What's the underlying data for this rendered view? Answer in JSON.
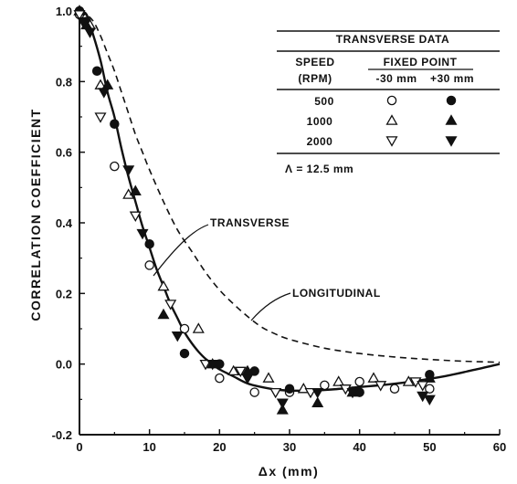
{
  "chart_data": {
    "type": "scatter",
    "title": "",
    "xlabel": "Δx (mm)",
    "ylabel": "CORRELATION COEFFICIENT",
    "xlim": [
      0,
      60
    ],
    "ylim": [
      -0.2,
      1.0
    ],
    "x_ticks": [
      "0",
      "10",
      "20",
      "30",
      "40",
      "50",
      "60"
    ],
    "y_ticks": [
      "1.0",
      "0.8",
      "0.6",
      "0.4",
      "0.2",
      "0.0",
      "-0.2"
    ],
    "grid": false,
    "curves": [
      {
        "name": "TRANSVERSE",
        "style": "solid",
        "points": [
          [
            0,
            1.0
          ],
          [
            1,
            0.99
          ],
          [
            2,
            0.93
          ],
          [
            3,
            0.86
          ],
          [
            4,
            0.77
          ],
          [
            5,
            0.7
          ],
          [
            6,
            0.61
          ],
          [
            7,
            0.53
          ],
          [
            8,
            0.46
          ],
          [
            9,
            0.39
          ],
          [
            10,
            0.33
          ],
          [
            11,
            0.27
          ],
          [
            12,
            0.22
          ],
          [
            13,
            0.17
          ],
          [
            14,
            0.13
          ],
          [
            15,
            0.09
          ],
          [
            16,
            0.06
          ],
          [
            17,
            0.035
          ],
          [
            18,
            0.015
          ],
          [
            19,
            0.0
          ],
          [
            20,
            -0.015
          ],
          [
            22,
            -0.035
          ],
          [
            24,
            -0.055
          ],
          [
            26,
            -0.065
          ],
          [
            28,
            -0.072
          ],
          [
            30,
            -0.075
          ],
          [
            33,
            -0.075
          ],
          [
            36,
            -0.072
          ],
          [
            40,
            -0.065
          ],
          [
            44,
            -0.058
          ],
          [
            48,
            -0.048
          ],
          [
            52,
            -0.035
          ],
          [
            56,
            -0.018
          ],
          [
            60,
            0.0
          ]
        ]
      },
      {
        "name": "LONGITUDINAL",
        "style": "dashed",
        "points": [
          [
            0,
            1.0
          ],
          [
            1,
            0.99
          ],
          [
            2,
            0.97
          ],
          [
            3,
            0.93
          ],
          [
            4,
            0.88
          ],
          [
            5,
            0.83
          ],
          [
            6,
            0.77
          ],
          [
            7,
            0.71
          ],
          [
            8,
            0.65
          ],
          [
            9,
            0.6
          ],
          [
            10,
            0.55
          ],
          [
            12,
            0.46
          ],
          [
            14,
            0.38
          ],
          [
            16,
            0.32
          ],
          [
            18,
            0.26
          ],
          [
            20,
            0.21
          ],
          [
            22,
            0.17
          ],
          [
            24,
            0.135
          ],
          [
            26,
            0.105
          ],
          [
            28,
            0.085
          ],
          [
            30,
            0.07
          ],
          [
            35,
            0.045
          ],
          [
            40,
            0.03
          ],
          [
            45,
            0.02
          ],
          [
            50,
            0.013
          ],
          [
            55,
            0.008
          ],
          [
            60,
            0.005
          ]
        ]
      }
    ],
    "series": [
      {
        "name": "500 -30 mm",
        "marker": "circle-open",
        "points": [
          [
            0,
            0.99
          ],
          [
            5,
            0.56
          ],
          [
            10,
            0.28
          ],
          [
            15,
            0.1
          ],
          [
            20,
            -0.04
          ],
          [
            25,
            -0.08
          ],
          [
            30,
            -0.08
          ],
          [
            35,
            -0.06
          ],
          [
            40,
            -0.05
          ],
          [
            45,
            -0.07
          ],
          [
            50,
            -0.07
          ]
        ]
      },
      {
        "name": "500 +30 mm",
        "marker": "circle-filled",
        "points": [
          [
            0,
            1.0
          ],
          [
            1,
            0.97
          ],
          [
            2.5,
            0.83
          ],
          [
            5,
            0.68
          ],
          [
            10,
            0.34
          ],
          [
            15,
            0.03
          ],
          [
            20,
            0.0
          ],
          [
            25,
            -0.02
          ],
          [
            30,
            -0.07
          ],
          [
            40,
            -0.08
          ],
          [
            50,
            -0.03
          ]
        ]
      },
      {
        "name": "1000 -30 mm",
        "marker": "triangle-up-open",
        "points": [
          [
            0,
            1.0
          ],
          [
            1.5,
            0.96
          ],
          [
            3,
            0.79
          ],
          [
            7,
            0.48
          ],
          [
            12,
            0.22
          ],
          [
            17,
            0.1
          ],
          [
            22,
            -0.02
          ],
          [
            27,
            -0.04
          ],
          [
            32,
            -0.07
          ],
          [
            37,
            -0.05
          ],
          [
            42,
            -0.04
          ],
          [
            47,
            -0.05
          ]
        ]
      },
      {
        "name": "1000 +30 mm",
        "marker": "triangle-up-filled",
        "points": [
          [
            0,
            1.0
          ],
          [
            1,
            0.96
          ],
          [
            4,
            0.79
          ],
          [
            8,
            0.49
          ],
          [
            12,
            0.14
          ],
          [
            19,
            0.0
          ],
          [
            24,
            -0.02
          ],
          [
            29,
            -0.13
          ],
          [
            34,
            -0.11
          ],
          [
            39,
            -0.08
          ],
          [
            50,
            -0.04
          ]
        ]
      },
      {
        "name": "2000 -30 mm",
        "marker": "triangle-down-open",
        "points": [
          [
            0,
            0.99
          ],
          [
            3,
            0.7
          ],
          [
            8,
            0.42
          ],
          [
            13,
            0.17
          ],
          [
            18,
            0.0
          ],
          [
            23,
            -0.02
          ],
          [
            28,
            -0.08
          ],
          [
            33,
            -0.08
          ],
          [
            38,
            -0.07
          ],
          [
            43,
            -0.06
          ],
          [
            48,
            -0.05
          ],
          [
            49,
            -0.06
          ]
        ]
      },
      {
        "name": "2000 +30 mm",
        "marker": "triangle-down-filled",
        "points": [
          [
            0.5,
            0.97
          ],
          [
            1.5,
            0.94
          ],
          [
            3.5,
            0.77
          ],
          [
            7,
            0.55
          ],
          [
            9,
            0.37
          ],
          [
            14,
            0.08
          ],
          [
            19,
            0.0
          ],
          [
            24,
            -0.04
          ],
          [
            29,
            -0.11
          ],
          [
            34,
            -0.08
          ],
          [
            39,
            -0.08
          ],
          [
            49,
            -0.09
          ],
          [
            50,
            -0.1
          ]
        ]
      }
    ],
    "annotations": [
      "TRANSVERSE",
      "LONGITUDINAL"
    ],
    "legend": {
      "position": "top-right",
      "title": "TRANSVERSE  DATA",
      "col_speed": "SPEED",
      "col_speed_unit": "(RPM)",
      "col_fixed": "FIXED POINT",
      "col_minus": "-30 mm",
      "col_plus": "+30 mm",
      "rows": [
        {
          "speed": "500",
          "marker_minus": "circle-open",
          "marker_plus": "circle-filled"
        },
        {
          "speed": "1000",
          "marker_minus": "triangle-up-open",
          "marker_plus": "triangle-up-filled"
        },
        {
          "speed": "2000",
          "marker_minus": "triangle-down-open",
          "marker_plus": "triangle-down-filled"
        }
      ],
      "note": "Λ = 12.5 mm"
    }
  }
}
